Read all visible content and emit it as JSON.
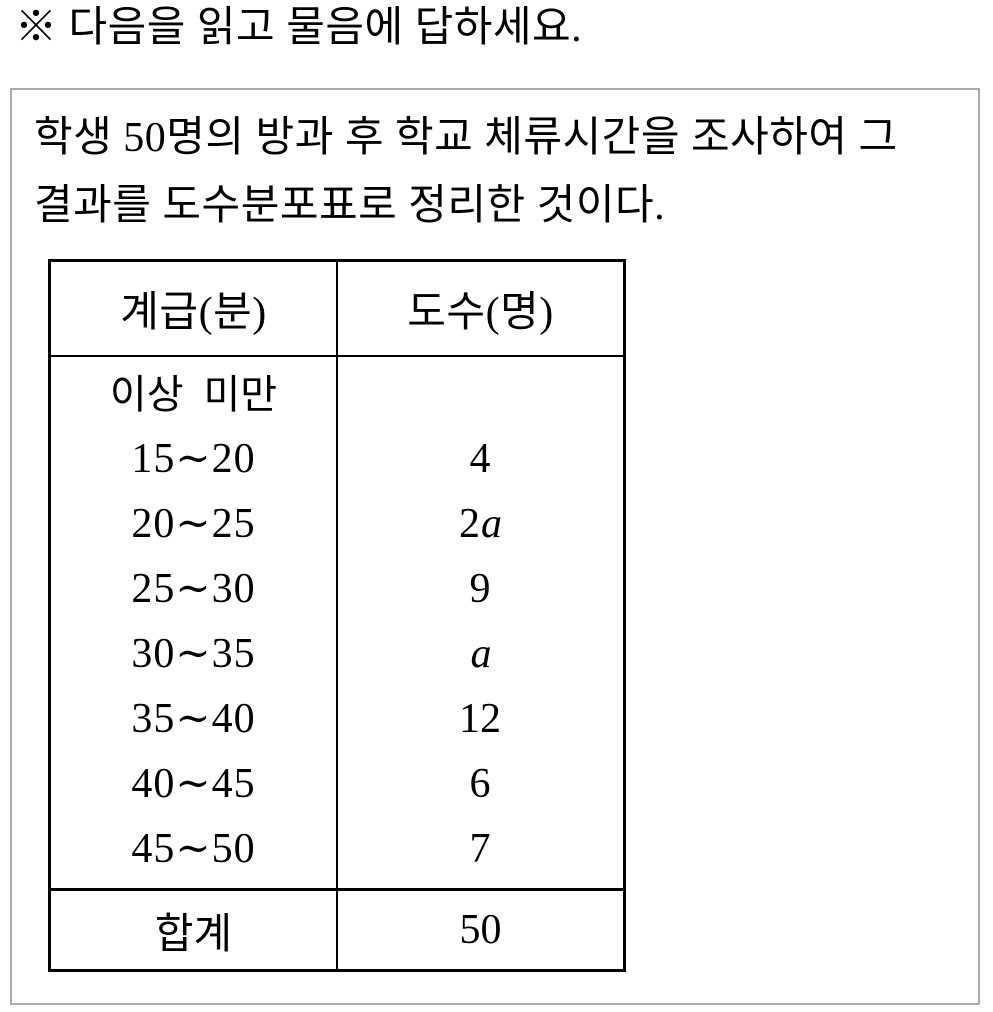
{
  "instruction": "※ 다음을 읽고 물음에 답하세요.",
  "description": {
    "line1": "학생 50명의 방과 후 학교 체류시간을 조사하여 그",
    "line2": "결과를 도수분포표로 정리한 것이다."
  },
  "chart_data": {
    "type": "table",
    "columns": [
      "계급(분)",
      "도수(명)"
    ],
    "bounds_note": "이상  미만",
    "rows": [
      {
        "range": "15∼20",
        "freq_num": "4",
        "freq_var": ""
      },
      {
        "range": "20∼25",
        "freq_num": "2",
        "freq_var": "a"
      },
      {
        "range": "25∼30",
        "freq_num": "9",
        "freq_var": ""
      },
      {
        "range": "30∼35",
        "freq_num": "",
        "freq_var": "a"
      },
      {
        "range": "35∼40",
        "freq_num": "12",
        "freq_var": ""
      },
      {
        "range": "40∼45",
        "freq_num": "6",
        "freq_var": ""
      },
      {
        "range": "45∼50",
        "freq_num": "7",
        "freq_var": ""
      }
    ],
    "total": {
      "label": "합계",
      "value": "50"
    }
  },
  "colors": {
    "text": "#000000",
    "table_border": "#000000",
    "box_border": "#ababab",
    "background": "#ffffff"
  }
}
